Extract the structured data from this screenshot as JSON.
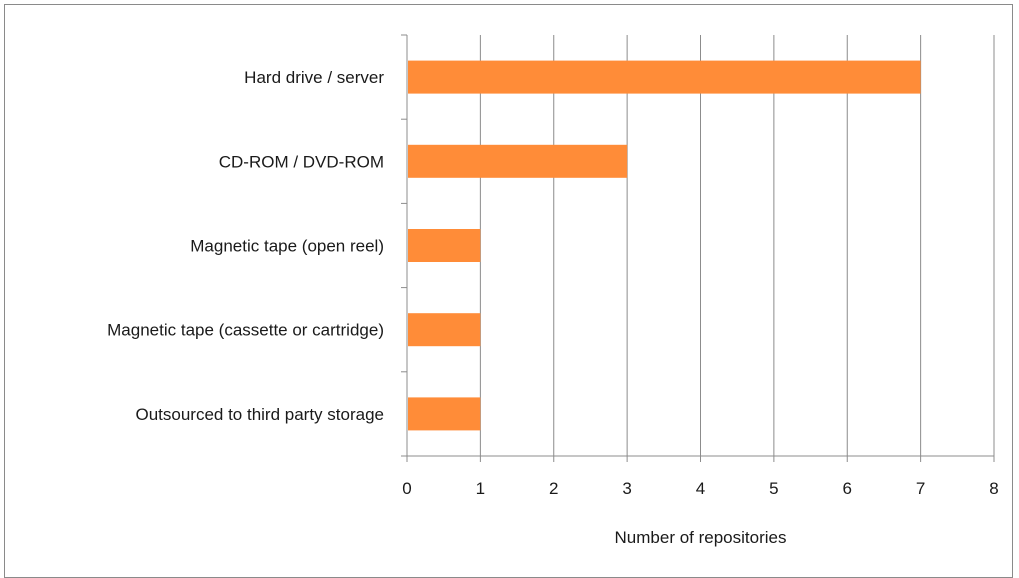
{
  "chart_data": {
    "type": "bar",
    "orientation": "horizontal",
    "categories": [
      "Hard drive / server",
      "CD-ROM / DVD-ROM",
      "Magnetic tape (open reel)",
      "Magnetic tape (cassette or cartridge)",
      "Outsourced to third party storage"
    ],
    "values": [
      7,
      3,
      1,
      1,
      1
    ],
    "xlabel": "Number of repositories",
    "ylabel": "",
    "xlim": [
      0,
      8
    ],
    "xticks": [
      "0",
      "1",
      "2",
      "3",
      "4",
      "5",
      "6",
      "7",
      "8"
    ],
    "grid": "vertical",
    "legend": "none",
    "colors": {
      "bar": "#ff8c38",
      "grid": "#8c8c8c",
      "axis": "#8c8c8c",
      "frame": "#8a8a8a"
    }
  }
}
